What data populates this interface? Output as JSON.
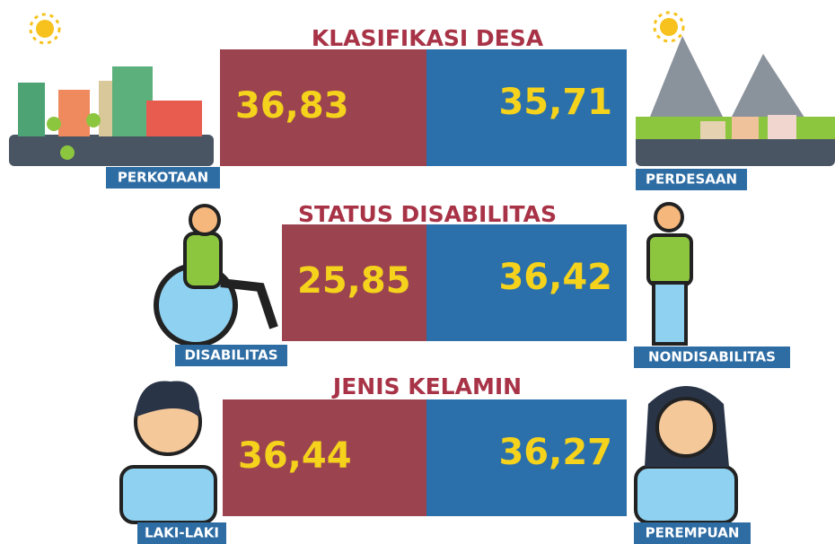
{
  "sections": [
    {
      "title": "KLASIFIKASI DESA",
      "left": {
        "label": "PERKOTAAN",
        "value": "36,83"
      },
      "right": {
        "label": "PERDESAAN",
        "value": "35,71"
      }
    },
    {
      "title": "STATUS DISABILITAS",
      "left": {
        "label": "DISABILITAS",
        "value": "25,85"
      },
      "right": {
        "label": "NONDISABILITAS",
        "value": "36,42"
      }
    },
    {
      "title": "JENIS KELAMIN",
      "left": {
        "label": "LAKI-LAKI",
        "value": "36,44"
      },
      "right": {
        "label": "PEREMPUAN",
        "value": "36,27"
      }
    }
  ]
}
